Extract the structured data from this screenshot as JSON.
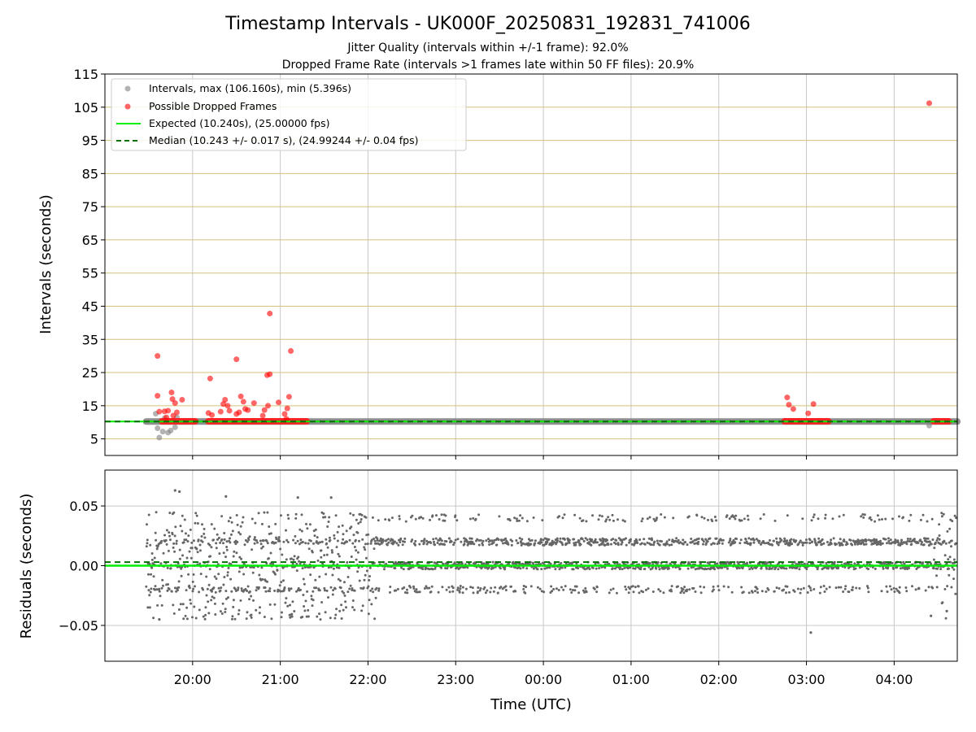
{
  "chart_data": {
    "type": "scatter",
    "title": "Timestamp Intervals - UK000F_20250831_192831_741006",
    "subtitle_lines": [
      "Jitter Quality (intervals within +/-1 frame): 92.0%",
      "Dropped Frame Rate (intervals >1 frames late within 50 FF files): 20.9%"
    ],
    "xlabel": "Time (UTC)",
    "x_ticks": [
      "20:00",
      "21:00",
      "22:00",
      "23:00",
      "00:00",
      "01:00",
      "02:00",
      "03:00",
      "04:00"
    ],
    "x_tick_hours": [
      20,
      21,
      22,
      23,
      24,
      25,
      26,
      27,
      28
    ],
    "xlim_hours": [
      19.0,
      28.72
    ],
    "top_panel": {
      "ylabel": "Intervals (seconds)",
      "ylim": [
        0,
        115
      ],
      "y_ticks": [
        5,
        15,
        25,
        35,
        45,
        55,
        65,
        75,
        85,
        95,
        105,
        115
      ],
      "grid": "horizontal gold lines, vertical grey lines",
      "legend": {
        "placement": "top-left",
        "entries": [
          {
            "label": "Intervals, max (106.160s), min (5.396s)",
            "marker": "point",
            "color": "#808080"
          },
          {
            "label": "Possible Dropped Frames",
            "marker": "point",
            "color": "#ff0000"
          },
          {
            "label": "Expected (10.240s), (25.00000 fps)",
            "marker": "solid-line",
            "color": "#00ee00"
          },
          {
            "label": "Median (10.243 +/- 0.017 s), (24.99244 +/- 0.04 fps)",
            "marker": "dashed-line",
            "color": "#007000"
          }
        ]
      },
      "expected_value": 10.24,
      "median_value": 10.243,
      "interval_band": {
        "x_start": 19.47,
        "x_end": 28.72,
        "y": 10.24
      },
      "gray_outliers": [
        [
          19.58,
          12.6
        ],
        [
          19.6,
          8.2
        ],
        [
          19.62,
          5.4
        ],
        [
          19.66,
          7.2
        ],
        [
          19.72,
          6.9
        ],
        [
          19.75,
          7.5
        ],
        [
          19.8,
          8.5
        ],
        [
          19.82,
          11.5
        ],
        [
          19.68,
          11.2
        ],
        [
          28.4,
          9.0
        ]
      ],
      "dropped_frames": [
        [
          19.6,
          30.0
        ],
        [
          19.6,
          18.0
        ],
        [
          19.62,
          13.2
        ],
        [
          19.68,
          13.3
        ],
        [
          19.72,
          13.5
        ],
        [
          19.76,
          19.0
        ],
        [
          19.77,
          17.0
        ],
        [
          19.8,
          15.8
        ],
        [
          19.82,
          13.0
        ],
        [
          19.88,
          16.8
        ],
        [
          19.7,
          11.5
        ],
        [
          19.78,
          12.0
        ],
        [
          20.2,
          23.2
        ],
        [
          20.18,
          12.8
        ],
        [
          20.22,
          12.2
        ],
        [
          20.32,
          13.2
        ],
        [
          20.35,
          15.5
        ],
        [
          20.37,
          16.8
        ],
        [
          20.4,
          15.0
        ],
        [
          20.42,
          13.5
        ],
        [
          20.5,
          29.0
        ],
        [
          20.5,
          12.5
        ],
        [
          20.53,
          13.0
        ],
        [
          20.55,
          17.8
        ],
        [
          20.58,
          16.2
        ],
        [
          20.6,
          14.0
        ],
        [
          20.63,
          13.7
        ],
        [
          20.7,
          15.8
        ],
        [
          20.8,
          12.0
        ],
        [
          20.82,
          13.7
        ],
        [
          20.85,
          24.2
        ],
        [
          20.88,
          24.5
        ],
        [
          20.88,
          42.8
        ],
        [
          20.86,
          15.0
        ],
        [
          20.98,
          16.0
        ],
        [
          21.05,
          12.5
        ],
        [
          21.08,
          14.2
        ],
        [
          21.1,
          17.7
        ],
        [
          21.12,
          31.5
        ],
        [
          21.07,
          11.0
        ],
        [
          26.78,
          17.5
        ],
        [
          26.8,
          15.3
        ],
        [
          26.85,
          14.0
        ],
        [
          27.02,
          12.7
        ],
        [
          27.08,
          15.5
        ],
        [
          28.4,
          106.2
        ]
      ],
      "dropped_dense_segments": [
        {
          "x_start": 19.65,
          "x_end": 20.03,
          "y": 10.3
        },
        {
          "x_start": 20.18,
          "x_end": 21.3,
          "y": 10.3
        },
        {
          "x_start": 26.75,
          "x_end": 27.25,
          "y": 10.3
        },
        {
          "x_start": 28.45,
          "x_end": 28.62,
          "y": 10.3
        }
      ]
    },
    "bottom_panel": {
      "ylabel": "Residuals (seconds)",
      "ylim": [
        -0.08,
        0.08
      ],
      "y_ticks": [
        0.05,
        0.0,
        -0.05
      ],
      "y_tick_labels": [
        "0.05",
        "0.00",
        "−0.05"
      ],
      "grid": "grey",
      "expected_residual": 0.0,
      "median_residual": 0.003,
      "noise_until_hour": 22.1,
      "quantized_levels": [
        -0.02,
        0.0,
        0.02,
        0.04
      ],
      "outliers": [
        [
          19.8,
          0.063
        ],
        [
          19.85,
          0.062
        ],
        [
          20.38,
          0.058
        ],
        [
          21.2,
          0.057
        ],
        [
          21.58,
          0.057
        ],
        [
          27.05,
          -0.056
        ],
        [
          19.62,
          -0.045
        ],
        [
          28.42,
          -0.042
        ],
        [
          28.6,
          -0.038
        ]
      ],
      "point_color": "#666666"
    }
  }
}
